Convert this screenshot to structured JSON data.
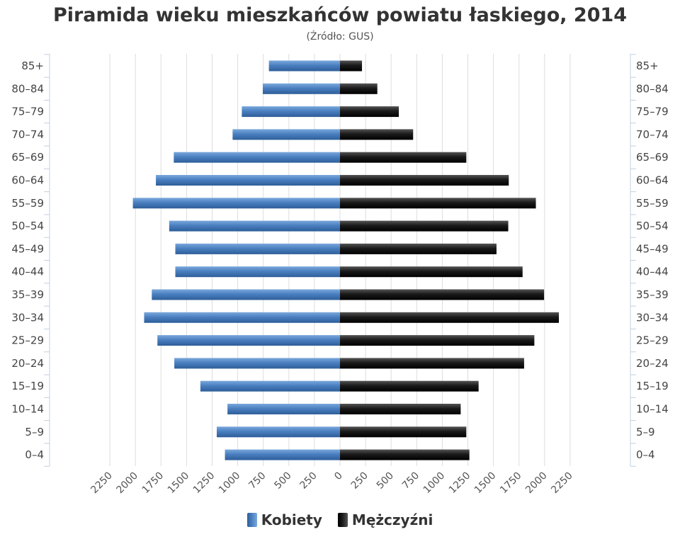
{
  "chart_data": {
    "type": "bar",
    "orientation": "horizontal-pyramid",
    "title": "Piramida wieku mieszkańców powiatu łaskiego, 2014",
    "subtitle": "(Źródło: GUS)",
    "categories": [
      "85+",
      "80–84",
      "75–79",
      "70–74",
      "65–69",
      "60–64",
      "55–59",
      "50–54",
      "45–49",
      "40–44",
      "35–39",
      "30–34",
      "25–29",
      "20–24",
      "15–19",
      "10–14",
      "5–9",
      "0–4"
    ],
    "series": [
      {
        "name": "Kobiety",
        "side": "left",
        "color": "#4a7fc0",
        "values": [
          695,
          755,
          960,
          1050,
          1625,
          1800,
          2025,
          1670,
          1610,
          1610,
          1840,
          1915,
          1785,
          1620,
          1365,
          1100,
          1205,
          1125
        ]
      },
      {
        "name": "Mężczyźni",
        "side": "right",
        "color": "#1a1a1a",
        "values": [
          215,
          365,
          575,
          715,
          1235,
          1650,
          1915,
          1645,
          1530,
          1785,
          1995,
          2140,
          1900,
          1800,
          1355,
          1180,
          1235,
          1265
        ]
      }
    ],
    "x_ticks": [
      "2250",
      "2000",
      "1750",
      "1500",
      "1250",
      "1000",
      "750",
      "500",
      "250",
      "0",
      "250",
      "500",
      "750",
      "1000",
      "1250",
      "1500",
      "1750",
      "2000",
      "2250"
    ],
    "xlim": [
      -2250,
      2250
    ],
    "grid": "vertical",
    "legend_position": "bottom-center"
  }
}
